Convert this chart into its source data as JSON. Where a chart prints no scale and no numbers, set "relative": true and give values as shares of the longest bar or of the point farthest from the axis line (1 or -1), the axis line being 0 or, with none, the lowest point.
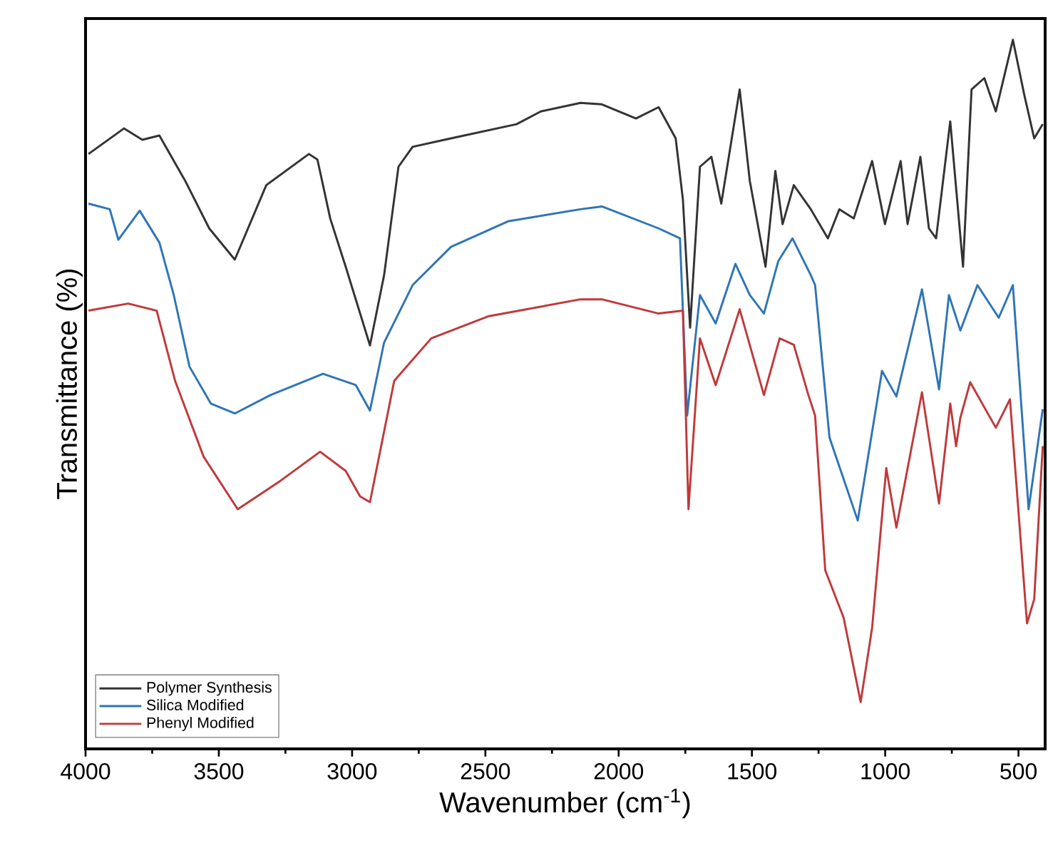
{
  "chart_data": {
    "type": "line",
    "relative": true,
    "xlabel": "Wavenumber (cm$^{-1}$)",
    "ylabel": "Transmittance (%)",
    "xlim": [
      4000,
      400
    ],
    "xticks": [
      4000,
      3500,
      3000,
      2500,
      2000,
      1500,
      1000,
      500
    ],
    "legend": "bottom left",
    "series": [
      {
        "name": "Polymer Synthesis",
        "color": "#333333",
        "x": [
          3989,
          3856,
          3787,
          3723,
          3626,
          3536,
          3440,
          3322,
          3162,
          3130,
          3082,
          3024,
          2933,
          2880,
          2826,
          2773,
          2629,
          2383,
          2292,
          2143,
          2063,
          1935,
          1850,
          1786,
          1759,
          1732,
          1695,
          1652,
          1615,
          1546,
          1508,
          1449,
          1412,
          1385,
          1343,
          1279,
          1215,
          1172,
          1118,
          1049,
          1001,
          942,
          916,
          868,
          836,
          809,
          756,
          708,
          676,
          628,
          585,
          521,
          478,
          441,
          409
        ],
        "values": [
          0.839,
          0.875,
          0.859,
          0.865,
          0.801,
          0.734,
          0.69,
          0.795,
          0.839,
          0.831,
          0.748,
          0.68,
          0.569,
          0.668,
          0.821,
          0.849,
          0.861,
          0.881,
          0.899,
          0.911,
          0.909,
          0.889,
          0.905,
          0.861,
          0.775,
          0.594,
          0.821,
          0.835,
          0.769,
          0.93,
          0.801,
          0.68,
          0.815,
          0.74,
          0.795,
          0.761,
          0.72,
          0.761,
          0.748,
          0.829,
          0.74,
          0.829,
          0.74,
          0.835,
          0.734,
          0.72,
          0.885,
          0.68,
          0.93,
          0.946,
          0.899,
          1.0,
          0.922,
          0.861,
          0.881
        ]
      },
      {
        "name": "Silica Modified",
        "color": "#2e75b6",
        "x": [
          3989,
          3909,
          3877,
          3797,
          3723,
          3669,
          3610,
          3530,
          3440,
          3306,
          3109,
          2986,
          2933,
          2880,
          2773,
          2629,
          2415,
          2143,
          2063,
          1850,
          1770,
          1743,
          1695,
          1636,
          1562,
          1508,
          1455,
          1401,
          1348,
          1279,
          1263,
          1209,
          1103,
          1012,
          958,
          862,
          798,
          761,
          718,
          654,
          574,
          521,
          462,
          409
        ],
        "values": [
          0.769,
          0.761,
          0.718,
          0.759,
          0.714,
          0.64,
          0.539,
          0.487,
          0.473,
          0.499,
          0.529,
          0.513,
          0.477,
          0.573,
          0.654,
          0.708,
          0.744,
          0.761,
          0.765,
          0.734,
          0.72,
          0.47,
          0.64,
          0.6,
          0.684,
          0.64,
          0.614,
          0.688,
          0.72,
          0.668,
          0.654,
          0.439,
          0.322,
          0.533,
          0.497,
          0.648,
          0.507,
          0.64,
          0.59,
          0.654,
          0.608,
          0.654,
          0.338,
          0.479
        ]
      },
      {
        "name": "Phenyl Modified",
        "color": "#c0393b",
        "x": [
          3989,
          3840,
          3733,
          3664,
          3557,
          3429,
          3269,
          3120,
          3024,
          2970,
          2933,
          2842,
          2703,
          2490,
          2143,
          2063,
          1850,
          1759,
          1738,
          1695,
          1636,
          1546,
          1455,
          1396,
          1343,
          1289,
          1263,
          1225,
          1156,
          1092,
          1049,
          996,
          958,
          862,
          798,
          756,
          734,
          718,
          681,
          585,
          532,
          468,
          441,
          409
        ],
        "values": [
          0.618,
          0.628,
          0.618,
          0.519,
          0.412,
          0.338,
          0.378,
          0.419,
          0.392,
          0.356,
          0.348,
          0.519,
          0.579,
          0.61,
          0.634,
          0.634,
          0.614,
          0.618,
          0.338,
          0.579,
          0.513,
          0.62,
          0.499,
          0.579,
          0.57,
          0.5,
          0.47,
          0.252,
          0.185,
          0.066,
          0.171,
          0.396,
          0.312,
          0.503,
          0.346,
          0.487,
          0.427,
          0.467,
          0.517,
          0.453,
          0.493,
          0.177,
          0.211,
          0.427
        ]
      }
    ]
  }
}
